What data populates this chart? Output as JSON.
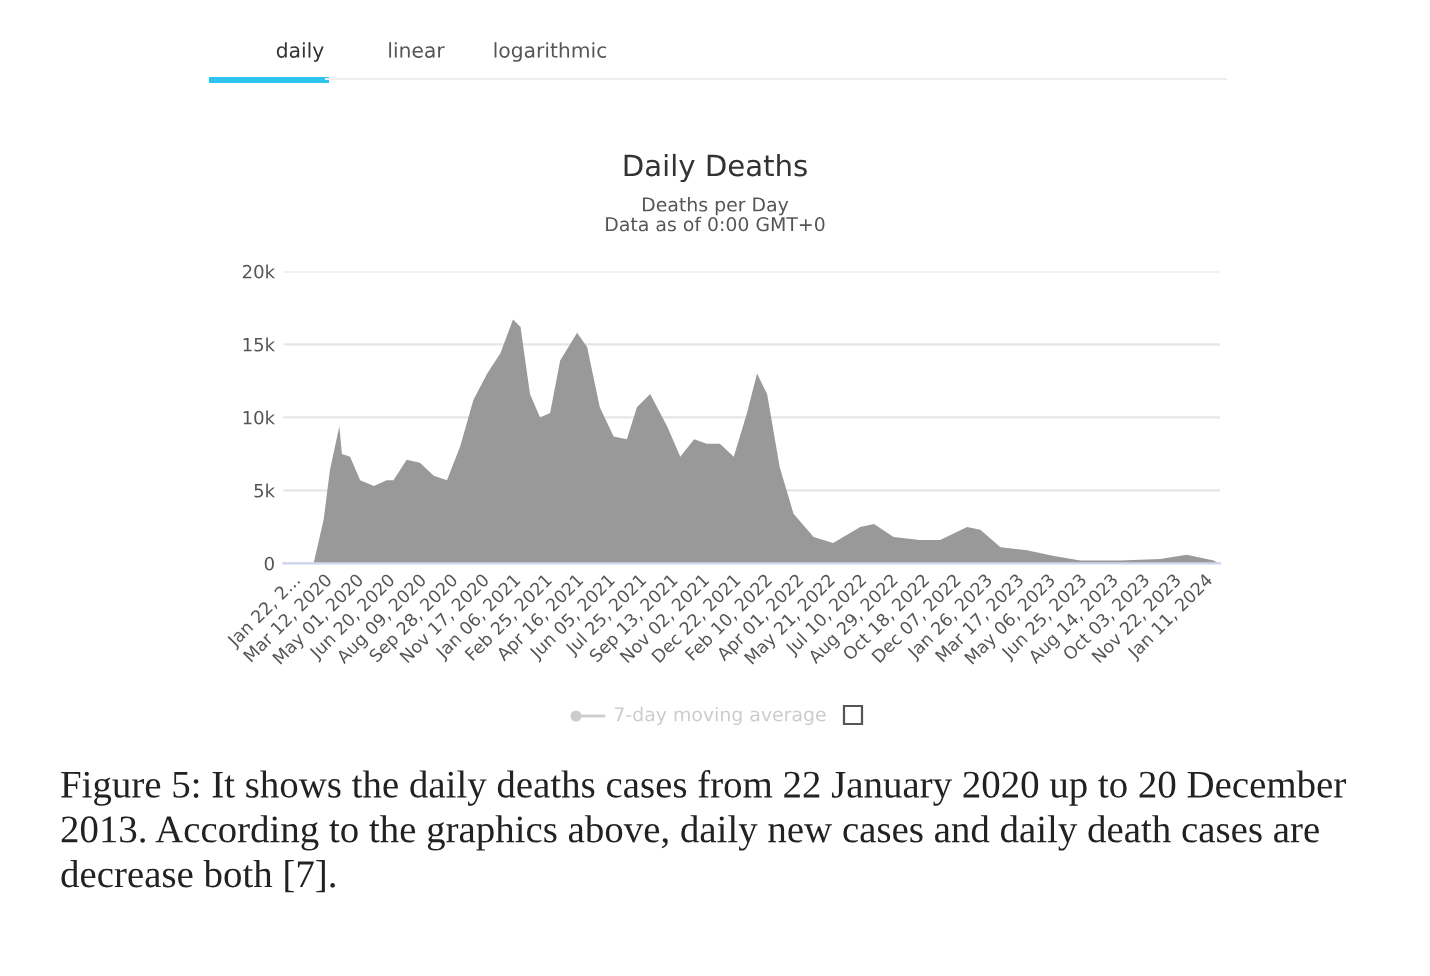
{
  "chart_data": {
    "type": "area",
    "title": "Daily Deaths",
    "subtitle": "Deaths per Day\nData as of 0:00 GMT+0",
    "annotations": [
      "daily",
      "linear",
      "logarithmic",
      "7-day moving average",
      "Figure 5: It shows the daily deaths cases from 22 January 2020 up to 20 December 2013. According to the graphics above, daily new cases and daily death cases are decrease both [7]."
    ],
    "x": [
      "2020-02-25",
      "2020-03-12",
      "2020-03-22",
      "2020-03-29",
      "2020-04-06",
      "2020-04-10",
      "2020-04-23",
      "2020-05-09",
      "2020-05-31",
      "2020-06-20",
      "2020-07-01",
      "2020-07-22",
      "2020-08-12",
      "2020-09-03",
      "2020-09-24",
      "2020-10-15",
      "2020-11-05",
      "2020-11-27",
      "2020-12-18",
      "2021-01-07",
      "2021-01-19",
      "2021-02-03",
      "2021-02-19",
      "2021-03-07",
      "2021-03-23",
      "2021-04-19",
      "2021-05-05",
      "2021-05-25",
      "2021-06-16",
      "2021-07-07",
      "2021-07-23",
      "2021-08-13",
      "2021-09-09",
      "2021-09-30",
      "2021-10-22",
      "2021-11-11",
      "2021-12-02",
      "2021-12-24",
      "2022-01-14",
      "2022-01-30",
      "2022-02-15",
      "2022-03-07",
      "2022-03-29",
      "2022-04-30",
      "2022-05-31",
      "2022-07-13",
      "2022-08-04",
      "2022-09-04",
      "2022-10-16",
      "2022-11-17",
      "2022-12-30",
      "2023-01-20",
      "2023-02-21",
      "2023-04-04",
      "2023-05-17",
      "2023-06-28",
      "2023-08-30",
      "2023-11-02",
      "2023-12-14",
      "2024-01-26",
      "2024-02-03"
    ],
    "series": [
      {
        "color": "#999999",
        "values": [
          0,
          3000,
          6400,
          7800,
          9400,
          7500,
          7300,
          5700,
          5300,
          5700,
          5700,
          7100,
          6900,
          6000,
          5700,
          8000,
          11200,
          13000,
          14400,
          16700,
          16200,
          11600,
          10000,
          10300,
          13900,
          15800,
          14800,
          10700,
          8700,
          8500,
          10700,
          11600,
          9400,
          7300,
          8500,
          8200,
          8200,
          7300,
          10300,
          13000,
          11600,
          6600,
          3400,
          1800,
          1400,
          2500,
          2700,
          1800,
          1600,
          1600,
          2500,
          2300,
          1100,
          900,
          500,
          200,
          200,
          300,
          600,
          200,
          0
        ]
      }
    ],
    "xlim": [
      "2020-01-08",
      "2024-02-05"
    ],
    "xticks": [
      {
        "value": "2020-01-22",
        "label": "Jan 22, 2..."
      },
      {
        "value": "2020-03-12",
        "label": "Mar 12, 2020"
      },
      {
        "value": "2020-05-01",
        "label": "May 01, 2020"
      },
      {
        "value": "2020-06-20",
        "label": "Jun 20, 2020"
      },
      {
        "value": "2020-08-09",
        "label": "Aug 09, 2020"
      },
      {
        "value": "2020-09-28",
        "label": "Sep 28, 2020"
      },
      {
        "value": "2020-11-17",
        "label": "Nov 17, 2020"
      },
      {
        "value": "2021-01-06",
        "label": "Jan 06, 2021"
      },
      {
        "value": "2021-02-25",
        "label": "Feb 25, 2021"
      },
      {
        "value": "2021-04-16",
        "label": "Apr 16, 2021"
      },
      {
        "value": "2021-06-05",
        "label": "Jun 05, 2021"
      },
      {
        "value": "2021-07-25",
        "label": "Jul 25, 2021"
      },
      {
        "value": "2021-09-13",
        "label": "Sep 13, 2021"
      },
      {
        "value": "2021-11-02",
        "label": "Nov 02, 2021"
      },
      {
        "value": "2021-12-22",
        "label": "Dec 22, 2021"
      },
      {
        "value": "2022-02-10",
        "label": "Feb 10, 2022"
      },
      {
        "value": "2022-04-01",
        "label": "Apr 01, 2022"
      },
      {
        "value": "2022-05-21",
        "label": "May 21, 2022"
      },
      {
        "value": "2022-07-10",
        "label": "Jul 10, 2022"
      },
      {
        "value": "2022-08-29",
        "label": "Aug 29, 2022"
      },
      {
        "value": "2022-10-18",
        "label": "Oct 18, 2022"
      },
      {
        "value": "2022-12-07",
        "label": "Dec 07, 2022"
      },
      {
        "value": "2023-01-26",
        "label": "Jan 26, 2023"
      },
      {
        "value": "2023-03-17",
        "label": "Mar 17, 2023"
      },
      {
        "value": "2023-05-06",
        "label": "May 06, 2023"
      },
      {
        "value": "2023-06-25",
        "label": "Jun 25, 2023"
      },
      {
        "value": "2023-08-14",
        "label": "Aug 14, 2023"
      },
      {
        "value": "2023-10-03",
        "label": "Oct 03, 2023"
      },
      {
        "value": "2023-11-22",
        "label": "Nov 22, 2023"
      },
      {
        "value": "2024-01-11",
        "label": "Jan 11, 2024"
      }
    ],
    "ylim": [
      0,
      20000
    ],
    "yticks": [
      0,
      {
        "value": 5000,
        "label": "5k"
      },
      {
        "value": 10000,
        "label": "10k"
      },
      {
        "value": 15000,
        "label": "15k"
      },
      {
        "value": 20000,
        "label": "20k"
      }
    ],
    "grid": "y"
  }
}
